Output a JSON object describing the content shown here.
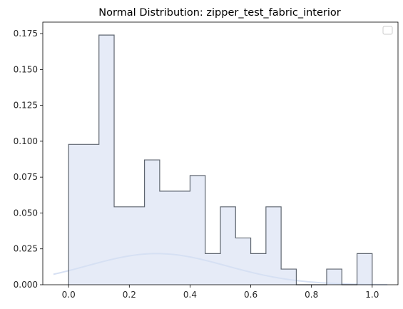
{
  "chart_data": {
    "type": "histogram",
    "title": "Normal Distribution: zipper_test_fabric_interior",
    "xlabel": "",
    "ylabel": "",
    "xlim": [
      -0.085,
      1.085
    ],
    "ylim": [
      0,
      0.183
    ],
    "x_ticks": [
      {
        "value": 0.0,
        "label": "0.0"
      },
      {
        "value": 0.2,
        "label": "0.2"
      },
      {
        "value": 0.4,
        "label": "0.4"
      },
      {
        "value": 0.6,
        "label": "0.6"
      },
      {
        "value": 0.8,
        "label": "0.8"
      },
      {
        "value": 1.0,
        "label": "1.0"
      }
    ],
    "y_ticks": [
      {
        "value": 0.0,
        "label": "0.000"
      },
      {
        "value": 0.025,
        "label": "0.025"
      },
      {
        "value": 0.05,
        "label": "0.050"
      },
      {
        "value": 0.075,
        "label": "0.075"
      },
      {
        "value": 0.1,
        "label": "0.100"
      },
      {
        "value": 0.125,
        "label": "0.125"
      },
      {
        "value": 0.15,
        "label": "0.150"
      },
      {
        "value": 0.175,
        "label": "0.175"
      }
    ],
    "bin_edges": [
      0.0,
      0.1,
      0.15,
      0.25,
      0.3,
      0.4,
      0.45,
      0.5,
      0.55,
      0.6,
      0.65,
      0.7,
      0.75,
      0.8,
      0.85,
      0.9,
      0.95,
      1.0
    ],
    "values": [
      0.0978,
      0.174,
      0.0543,
      0.087,
      0.0652,
      0.0761,
      0.0217,
      0.0543,
      0.0326,
      0.0217,
      0.0543,
      0.0109,
      0.0,
      0.0,
      0.0109,
      0.0,
      0.0217
    ],
    "curve": {
      "kind": "normal-pdf",
      "x_range": [
        -0.05,
        1.05
      ],
      "mean": 0.29,
      "std": 0.23,
      "scale": 0.0217
    },
    "grid": false,
    "legend": "top-right, empty",
    "colors": {
      "fill": "#e6ebf7",
      "edge": "#5f6670",
      "curve": "#d6e0f3",
      "axis": "#000000"
    }
  }
}
